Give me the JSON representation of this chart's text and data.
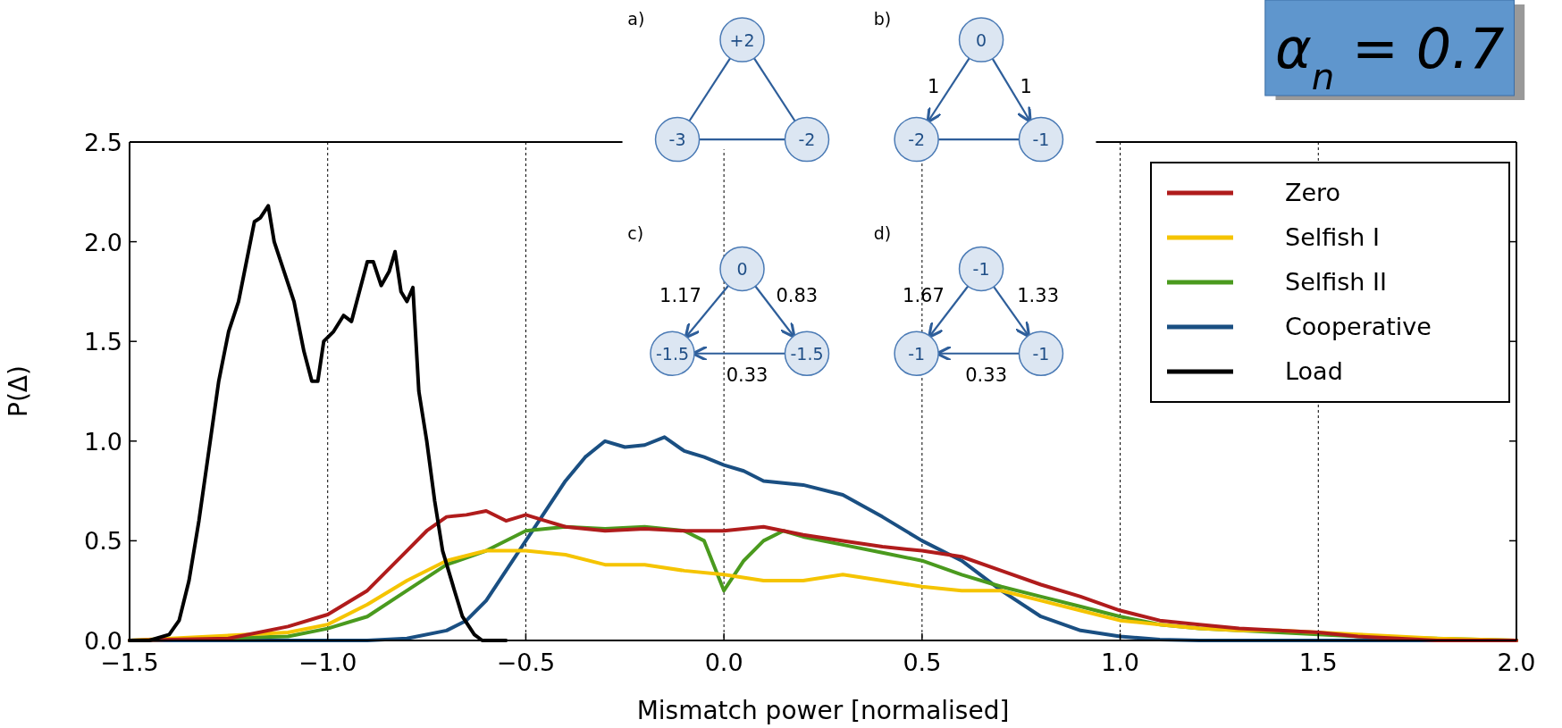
{
  "chart_data": {
    "type": "line",
    "xlabel": "Mismatch power [normalised]",
    "ylabel": "P(Δ)",
    "xlim": [
      -1.5,
      2.0
    ],
    "ylim": [
      0,
      2.5
    ],
    "xticks": [
      {
        "value": -1.5,
        "label": "−1.5"
      },
      {
        "value": -1.0,
        "label": "−1.0"
      },
      {
        "value": -0.5,
        "label": "−0.5"
      },
      {
        "value": 0,
        "label": "0.0"
      },
      {
        "value": 0.5,
        "label": "0.5"
      },
      {
        "value": 1.0,
        "label": "1.0"
      },
      {
        "value": 1.5,
        "label": "1.5"
      },
      {
        "value": 2.0,
        "label": "2.0"
      }
    ],
    "yticks": [
      {
        "value": 0,
        "label": "0.0"
      },
      {
        "value": 0.5,
        "label": "0.5"
      },
      {
        "value": 1.0,
        "label": "1.0"
      },
      {
        "value": 1.5,
        "label": "1.5"
      },
      {
        "value": 2.0,
        "label": "2.0"
      },
      {
        "value": 2.5,
        "label": "2.5"
      }
    ],
    "grid": "x",
    "legend": "top right",
    "marker": "none",
    "line_style": "solid",
    "series": [
      {
        "name": "Zero",
        "color": "#b01c1c",
        "x": [
          -1.5,
          -1.25,
          -1.1,
          -1.0,
          -0.9,
          -0.8,
          -0.75,
          -0.7,
          -0.65,
          -0.6,
          -0.55,
          -0.5,
          -0.45,
          -0.4,
          -0.3,
          -0.2,
          -0.1,
          0,
          0.1,
          0.2,
          0.3,
          0.4,
          0.5,
          0.6,
          0.7,
          0.8,
          0.9,
          1.0,
          1.1,
          1.2,
          1.3,
          1.4,
          1.5,
          1.6,
          1.7,
          1.8,
          2.0
        ],
        "values": [
          0,
          0.01,
          0.07,
          0.13,
          0.25,
          0.45,
          0.55,
          0.62,
          0.63,
          0.65,
          0.6,
          0.63,
          0.6,
          0.57,
          0.55,
          0.56,
          0.55,
          0.55,
          0.57,
          0.53,
          0.5,
          0.47,
          0.45,
          0.42,
          0.35,
          0.28,
          0.22,
          0.15,
          0.1,
          0.08,
          0.06,
          0.05,
          0.04,
          0.02,
          0.01,
          0,
          0
        ]
      },
      {
        "name": "Selfish I",
        "color": "#f5c400",
        "x": [
          -1.5,
          -1.1,
          -1.0,
          -0.9,
          -0.8,
          -0.7,
          -0.6,
          -0.5,
          -0.4,
          -0.3,
          -0.2,
          -0.1,
          0,
          0.1,
          0.2,
          0.3,
          0.4,
          0.5,
          0.6,
          0.7,
          0.8,
          0.9,
          1.0,
          1.1,
          1.2,
          1.3,
          1.4,
          1.5,
          1.6,
          1.7,
          1.8,
          2.0
        ],
        "values": [
          0,
          0.04,
          0.08,
          0.18,
          0.3,
          0.4,
          0.45,
          0.45,
          0.43,
          0.38,
          0.38,
          0.35,
          0.33,
          0.3,
          0.3,
          0.33,
          0.3,
          0.27,
          0.25,
          0.25,
          0.2,
          0.15,
          0.1,
          0.08,
          0.06,
          0.05,
          0.05,
          0.04,
          0.03,
          0.02,
          0.01,
          0
        ]
      },
      {
        "name": "Selfish II",
        "color": "#4a9a1e",
        "x": [
          -1.5,
          -1.1,
          -1.0,
          -0.9,
          -0.8,
          -0.7,
          -0.6,
          -0.5,
          -0.4,
          -0.3,
          -0.2,
          -0.1,
          -0.05,
          0,
          0.05,
          0.1,
          0.15,
          0.2,
          0.3,
          0.4,
          0.5,
          0.6,
          0.7,
          0.8,
          0.9,
          1.0,
          1.1,
          1.2,
          1.3,
          1.4,
          1.5,
          1.6,
          2.0
        ],
        "values": [
          0,
          0.02,
          0.06,
          0.12,
          0.25,
          0.38,
          0.45,
          0.55,
          0.57,
          0.56,
          0.57,
          0.55,
          0.5,
          0.25,
          0.4,
          0.5,
          0.55,
          0.52,
          0.48,
          0.44,
          0.4,
          0.33,
          0.27,
          0.22,
          0.17,
          0.12,
          0.08,
          0.06,
          0.05,
          0.04,
          0.03,
          0.02,
          0
        ]
      },
      {
        "name": "Cooperative",
        "color": "#1a4f82",
        "x": [
          -1.5,
          -0.9,
          -0.8,
          -0.7,
          -0.65,
          -0.6,
          -0.55,
          -0.5,
          -0.45,
          -0.4,
          -0.35,
          -0.3,
          -0.25,
          -0.2,
          -0.15,
          -0.1,
          -0.05,
          0,
          0.05,
          0.1,
          0.2,
          0.3,
          0.4,
          0.5,
          0.6,
          0.7,
          0.8,
          0.9,
          1.0,
          1.1,
          1.2,
          2.0
        ],
        "values": [
          0,
          0,
          0.01,
          0.05,
          0.1,
          0.2,
          0.35,
          0.5,
          0.65,
          0.8,
          0.92,
          1.0,
          0.97,
          0.98,
          1.02,
          0.95,
          0.92,
          0.88,
          0.85,
          0.8,
          0.78,
          0.73,
          0.62,
          0.5,
          0.4,
          0.25,
          0.12,
          0.05,
          0.02,
          0.005,
          0,
          0
        ]
      },
      {
        "name": "Load",
        "color": "#000000",
        "x": [
          -1.5,
          -1.45,
          -1.4,
          -1.375,
          -1.35,
          -1.325,
          -1.3,
          -1.275,
          -1.25,
          -1.225,
          -1.2,
          -1.185,
          -1.17,
          -1.15,
          -1.135,
          -1.11,
          -1.085,
          -1.06,
          -1.04,
          -1.025,
          -1.01,
          -0.985,
          -0.96,
          -0.94,
          -0.92,
          -0.9,
          -0.885,
          -0.865,
          -0.845,
          -0.83,
          -0.815,
          -0.8,
          -0.785,
          -0.77,
          -0.75,
          -0.73,
          -0.71,
          -0.68,
          -0.66,
          -0.63,
          -0.61,
          -0.55
        ],
        "values": [
          0,
          0,
          0.03,
          0.1,
          0.3,
          0.6,
          0.95,
          1.3,
          1.55,
          1.7,
          1.95,
          2.1,
          2.12,
          2.18,
          2.0,
          1.85,
          1.7,
          1.45,
          1.3,
          1.3,
          1.5,
          1.55,
          1.63,
          1.6,
          1.75,
          1.9,
          1.9,
          1.78,
          1.85,
          1.95,
          1.75,
          1.7,
          1.77,
          1.25,
          1.0,
          0.7,
          0.45,
          0.25,
          0.12,
          0.03,
          0,
          0
        ]
      }
    ],
    "annotations": [
      "α$_{n}$ = 0.7",
      "a)",
      "+2",
      "-3",
      "-2",
      "b)",
      "0",
      "-2",
      "-1",
      "1",
      "1",
      "c)",
      "0",
      "-1.5",
      "-1.5",
      "1.17",
      "0.83",
      "0.33",
      "d)",
      "-1",
      "-1",
      "-1",
      "1.67",
      "1.33",
      "0.33"
    ]
  }
}
